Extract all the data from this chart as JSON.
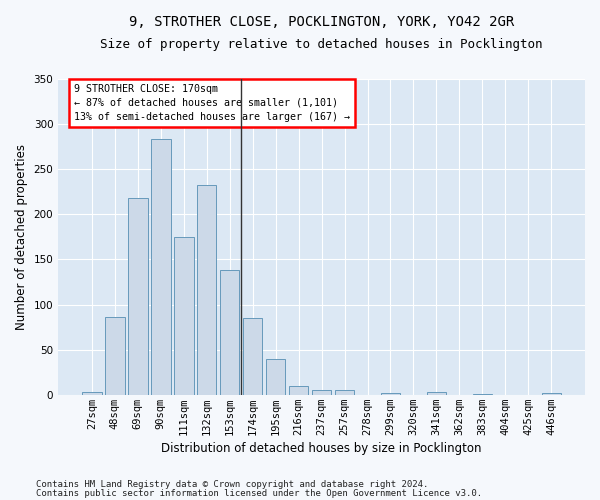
{
  "title_line1": "9, STROTHER CLOSE, POCKLINGTON, YORK, YO42 2GR",
  "title_line2": "Size of property relative to detached houses in Pocklington",
  "xlabel": "Distribution of detached houses by size in Pocklington",
  "ylabel": "Number of detached properties",
  "bar_color": "#ccd9e8",
  "bar_edge_color": "#6699bb",
  "background_color": "#dce8f4",
  "fig_background": "#f5f8fc",
  "categories": [
    "27sqm",
    "48sqm",
    "69sqm",
    "90sqm",
    "111sqm",
    "132sqm",
    "153sqm",
    "174sqm",
    "195sqm",
    "216sqm",
    "237sqm",
    "257sqm",
    "278sqm",
    "299sqm",
    "320sqm",
    "341sqm",
    "362sqm",
    "383sqm",
    "404sqm",
    "425sqm",
    "446sqm"
  ],
  "values": [
    3,
    86,
    218,
    283,
    175,
    232,
    138,
    85,
    40,
    10,
    5,
    5,
    0,
    2,
    0,
    3,
    0,
    1,
    0,
    0,
    2
  ],
  "ylim": [
    0,
    350
  ],
  "yticks": [
    0,
    50,
    100,
    150,
    200,
    250,
    300,
    350
  ],
  "annotation_title": "9 STROTHER CLOSE: 170sqm",
  "annotation_line2": "← 87% of detached houses are smaller (1,101)",
  "annotation_line3": "13% of semi-detached houses are larger (167) →",
  "footnote1": "Contains HM Land Registry data © Crown copyright and database right 2024.",
  "footnote2": "Contains public sector information licensed under the Open Government Licence v3.0.",
  "vline_color": "#333333",
  "grid_color": "#ffffff",
  "title_fontsize": 10,
  "subtitle_fontsize": 9,
  "axis_label_fontsize": 8.5,
  "tick_fontsize": 7.5,
  "footnote_fontsize": 6.5
}
